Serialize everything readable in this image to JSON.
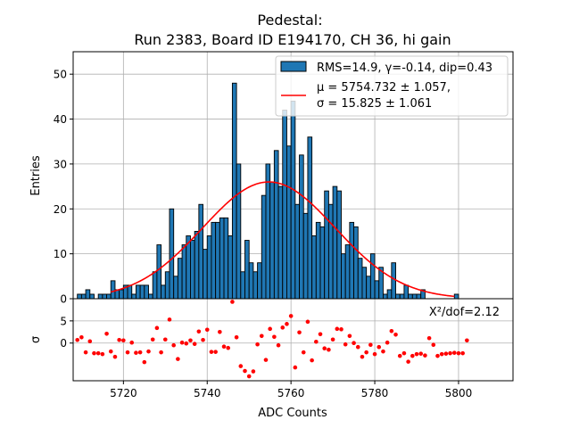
{
  "chart_data": {
    "type": "bar",
    "title_line1": "Pedestal:",
    "title_line2": "Run 2383, Board ID E194170, CH 36, hi gain",
    "top_panel": {
      "ylabel": "Entries",
      "xlim": [
        5708,
        5813
      ],
      "ylim": [
        0,
        55
      ],
      "y_ticks": [
        "0",
        "10",
        "20",
        "30",
        "40",
        "50"
      ],
      "bin_width": 1,
      "bins": [
        [
          5709,
          1
        ],
        [
          5710,
          1
        ],
        [
          5711,
          2
        ],
        [
          5712,
          1
        ],
        [
          5713,
          0
        ],
        [
          5714,
          1
        ],
        [
          5715,
          1
        ],
        [
          5716,
          1
        ],
        [
          5717,
          4
        ],
        [
          5718,
          2
        ],
        [
          5719,
          2
        ],
        [
          5720,
          3
        ],
        [
          5721,
          3
        ],
        [
          5722,
          1
        ],
        [
          5723,
          3
        ],
        [
          5724,
          3
        ],
        [
          5725,
          3
        ],
        [
          5726,
          1
        ],
        [
          5727,
          6
        ],
        [
          5728,
          12
        ],
        [
          5729,
          3
        ],
        [
          5730,
          6
        ],
        [
          5731,
          20
        ],
        [
          5732,
          5
        ],
        [
          5733,
          9
        ],
        [
          5734,
          12
        ],
        [
          5735,
          14
        ],
        [
          5736,
          13
        ],
        [
          5737,
          15
        ],
        [
          5738,
          21
        ],
        [
          5739,
          11
        ],
        [
          5740,
          14
        ],
        [
          5741,
          17
        ],
        [
          5742,
          17
        ],
        [
          5743,
          18
        ],
        [
          5744,
          18
        ],
        [
          5745,
          14
        ],
        [
          5746,
          48
        ],
        [
          5747,
          30
        ],
        [
          5748,
          6
        ],
        [
          5749,
          13
        ],
        [
          5750,
          8
        ],
        [
          5751,
          6
        ],
        [
          5752,
          8
        ],
        [
          5753,
          23
        ],
        [
          5754,
          30
        ],
        [
          5755,
          26
        ],
        [
          5756,
          33
        ],
        [
          5757,
          25
        ],
        [
          5758,
          42
        ],
        [
          5759,
          34
        ],
        [
          5760,
          44
        ],
        [
          5761,
          21
        ],
        [
          5762,
          32
        ],
        [
          5763,
          19
        ],
        [
          5764,
          36
        ],
        [
          5765,
          14
        ],
        [
          5766,
          17
        ],
        [
          5767,
          16
        ],
        [
          5768,
          24
        ],
        [
          5769,
          21
        ],
        [
          5770,
          25
        ],
        [
          5771,
          24
        ],
        [
          5772,
          10
        ],
        [
          5773,
          12
        ],
        [
          5774,
          17
        ],
        [
          5775,
          16
        ],
        [
          5776,
          9
        ],
        [
          5777,
          7
        ],
        [
          5778,
          5
        ],
        [
          5779,
          10
        ],
        [
          5780,
          4
        ],
        [
          5781,
          7
        ],
        [
          5782,
          1
        ],
        [
          5783,
          2
        ],
        [
          5784,
          8
        ],
        [
          5785,
          1
        ],
        [
          5786,
          1
        ],
        [
          5787,
          3
        ],
        [
          5788,
          1
        ],
        [
          5789,
          1
        ],
        [
          5790,
          1
        ],
        [
          5791,
          2
        ],
        [
          5792,
          0
        ],
        [
          5793,
          0
        ],
        [
          5794,
          0
        ],
        [
          5795,
          0
        ],
        [
          5796,
          0
        ],
        [
          5797,
          0
        ],
        [
          5798,
          0
        ],
        [
          5799,
          1
        ]
      ],
      "fit": {
        "mu": 5754.732,
        "sigma": 15.825,
        "amplitude": 26,
        "xrange": [
          5717,
          5799
        ]
      },
      "legend": {
        "hist_label": "RMS=14.9, γ=-0.14, dip=0.43",
        "fit_label_line1": "μ = 5754.732 ± 1.057,",
        "fit_label_line2": "σ = 15.825 ± 1.061"
      },
      "bar_color": "#1f77b4",
      "fit_color": "#ff0000"
    },
    "bottom_panel": {
      "ylabel": "σ",
      "xlabel": "ADC Counts",
      "ylim": [
        -8.5,
        10
      ],
      "y_ticks": [
        "0",
        "5"
      ],
      "x_ticks": [
        "5720",
        "5740",
        "5760",
        "5780",
        "5800"
      ],
      "chi2_label": "X²/dof=2.12",
      "point_color": "#ff0000",
      "points": [
        [
          5709,
          0.7
        ],
        [
          5710,
          1.3
        ],
        [
          5711,
          -2.1
        ],
        [
          5712,
          0.4
        ],
        [
          5713,
          -2.3
        ],
        [
          5714,
          -2.3
        ],
        [
          5715,
          -2.5
        ],
        [
          5716,
          2.1
        ],
        [
          5717,
          -1.9
        ],
        [
          5718,
          -3.1
        ],
        [
          5719,
          0.7
        ],
        [
          5720,
          0.6
        ],
        [
          5721,
          -2.1
        ],
        [
          5722,
          0.1
        ],
        [
          5723,
          -2.2
        ],
        [
          5724,
          -2.1
        ],
        [
          5725,
          -4.3
        ],
        [
          5726,
          -1.9
        ],
        [
          5727,
          0.8
        ],
        [
          5728,
          3.4
        ],
        [
          5729,
          -2.1
        ],
        [
          5730,
          0.8
        ],
        [
          5731,
          5.3
        ],
        [
          5732,
          -0.5
        ],
        [
          5733,
          -3.6
        ],
        [
          5734,
          0.1
        ],
        [
          5735,
          -0.1
        ],
        [
          5736,
          0.6
        ],
        [
          5737,
          -0.2
        ],
        [
          5738,
          2.6
        ],
        [
          5739,
          0.7
        ],
        [
          5740,
          3.0
        ],
        [
          5741,
          -2.0
        ],
        [
          5742,
          -2.0
        ],
        [
          5743,
          2.5
        ],
        [
          5744,
          -0.8
        ],
        [
          5745,
          -1.1
        ],
        [
          5746,
          9.3
        ],
        [
          5747,
          1.3
        ],
        [
          5748,
          -5.2
        ],
        [
          5749,
          -6.3
        ],
        [
          5750,
          -7.5
        ],
        [
          5751,
          -6.4
        ],
        [
          5752,
          -0.3
        ],
        [
          5753,
          1.6
        ],
        [
          5754,
          -3.8
        ],
        [
          5755,
          3.2
        ],
        [
          5756,
          1.4
        ],
        [
          5757,
          -0.5
        ],
        [
          5758,
          3.5
        ],
        [
          5759,
          4.3
        ],
        [
          5760,
          6.1
        ],
        [
          5761,
          -5.5
        ],
        [
          5762,
          2.4
        ],
        [
          5763,
          -2.1
        ],
        [
          5764,
          4.8
        ],
        [
          5765,
          -3.9
        ],
        [
          5766,
          0.3
        ],
        [
          5767,
          2.0
        ],
        [
          5768,
          -1.2
        ],
        [
          5769,
          -1.5
        ],
        [
          5770,
          0.8
        ],
        [
          5771,
          3.2
        ],
        [
          5772,
          3.1
        ],
        [
          5773,
          -0.3
        ],
        [
          5774,
          1.6
        ],
        [
          5775,
          0.0
        ],
        [
          5776,
          -0.9
        ],
        [
          5777,
          -3.1
        ],
        [
          5778,
          -2.1
        ],
        [
          5779,
          -0.4
        ],
        [
          5780,
          -2.5
        ],
        [
          5781,
          -0.9
        ],
        [
          5782,
          -1.9
        ],
        [
          5783,
          0.1
        ],
        [
          5784,
          2.7
        ],
        [
          5785,
          1.9
        ],
        [
          5786,
          -2.9
        ],
        [
          5787,
          -2.3
        ],
        [
          5788,
          -4.2
        ],
        [
          5789,
          -2.9
        ],
        [
          5790,
          -2.5
        ],
        [
          5791,
          -2.4
        ],
        [
          5792,
          -2.8
        ],
        [
          5793,
          1.1
        ],
        [
          5794,
          -0.4
        ],
        [
          5795,
          -2.9
        ],
        [
          5796,
          -2.5
        ],
        [
          5797,
          -2.4
        ],
        [
          5798,
          -2.3
        ],
        [
          5799,
          -2.2
        ],
        [
          5800,
          -2.3
        ],
        [
          5801,
          -2.3
        ],
        [
          5802,
          0.6
        ]
      ]
    }
  }
}
